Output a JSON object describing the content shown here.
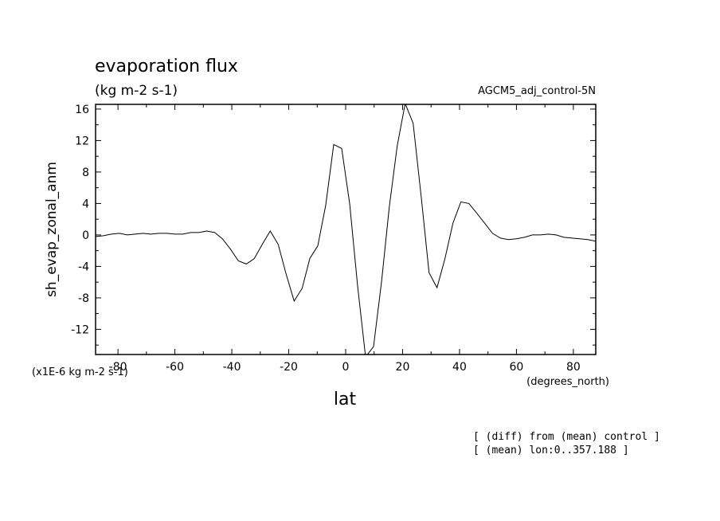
{
  "chart_data": {
    "type": "line",
    "title": "evaporation flux",
    "units": "(kg m-2 s-1)",
    "experiment": "AGCM5_adj_control-5N",
    "xlabel": "lat",
    "xunits": "(degrees_north)",
    "ylabel": "sh_evap_zonal_anm",
    "yscale_note": "(x1E-6 kg m-2 s-1)",
    "xlim": [
      -87.8638,
      87.8638
    ],
    "ylim": [
      -15.2,
      16.6
    ],
    "xticks": [
      -80,
      -60,
      -40,
      -20,
      0,
      20,
      40,
      60,
      80
    ],
    "xtick_labels": [
      "-80",
      "-60",
      "-40",
      "-20",
      "0",
      "20",
      "40",
      "60",
      "80"
    ],
    "yticks": [
      -12,
      -8,
      -4,
      0,
      4,
      8,
      12,
      16
    ],
    "ytick_labels": [
      "-12",
      "-8",
      "-4",
      "0",
      "4",
      "8",
      "12",
      "16"
    ],
    "grid": false,
    "legend": "none",
    "series": [
      {
        "color": "#000000",
        "x": [
          -87.86,
          -85.1,
          -82.3,
          -79.5,
          -76.7,
          -73.9,
          -71.2,
          -68.4,
          -65.6,
          -62.8,
          -60.0,
          -57.2,
          -54.4,
          -51.6,
          -48.8,
          -46.0,
          -43.3,
          -40.5,
          -37.7,
          -34.9,
          -32.1,
          -29.3,
          -26.5,
          -23.7,
          -20.9,
          -18.1,
          -15.3,
          -12.6,
          -9.8,
          -7.0,
          -4.2,
          -1.4,
          1.4,
          4.2,
          7.0,
          9.8,
          12.6,
          15.3,
          18.1,
          20.9,
          23.7,
          26.5,
          29.3,
          32.1,
          34.9,
          37.7,
          40.5,
          43.3,
          46.0,
          48.8,
          51.6,
          54.4,
          57.2,
          60.0,
          62.8,
          65.6,
          68.4,
          71.2,
          73.9,
          76.7,
          79.5,
          82.3,
          85.1,
          87.86
        ],
        "values": [
          -0.2,
          -0.1,
          0.1,
          0.2,
          0.0,
          0.1,
          0.2,
          0.1,
          0.2,
          0.2,
          0.1,
          0.1,
          0.3,
          0.3,
          0.5,
          0.3,
          -0.5,
          -1.8,
          -3.3,
          -3.7,
          -3.0,
          -1.2,
          0.5,
          -1.2,
          -5.0,
          -8.4,
          -6.8,
          -3.0,
          -1.4,
          3.8,
          11.5,
          11.0,
          4.0,
          -6.5,
          -15.5,
          -14.2,
          -6.0,
          3.5,
          11.3,
          16.7,
          14.2,
          5.0,
          -4.8,
          -6.7,
          -3.0,
          1.5,
          4.2,
          4.0,
          2.8,
          1.5,
          0.2,
          -0.4,
          -0.6,
          -0.5,
          -0.3,
          0.0,
          0.0,
          0.1,
          0.0,
          -0.3,
          -0.4,
          -0.5,
          -0.6,
          -0.8
        ]
      }
    ]
  },
  "notes": [
    "[ (diff) from (mean) control ]",
    "[ (mean) lon:0..357.188 ]"
  ]
}
